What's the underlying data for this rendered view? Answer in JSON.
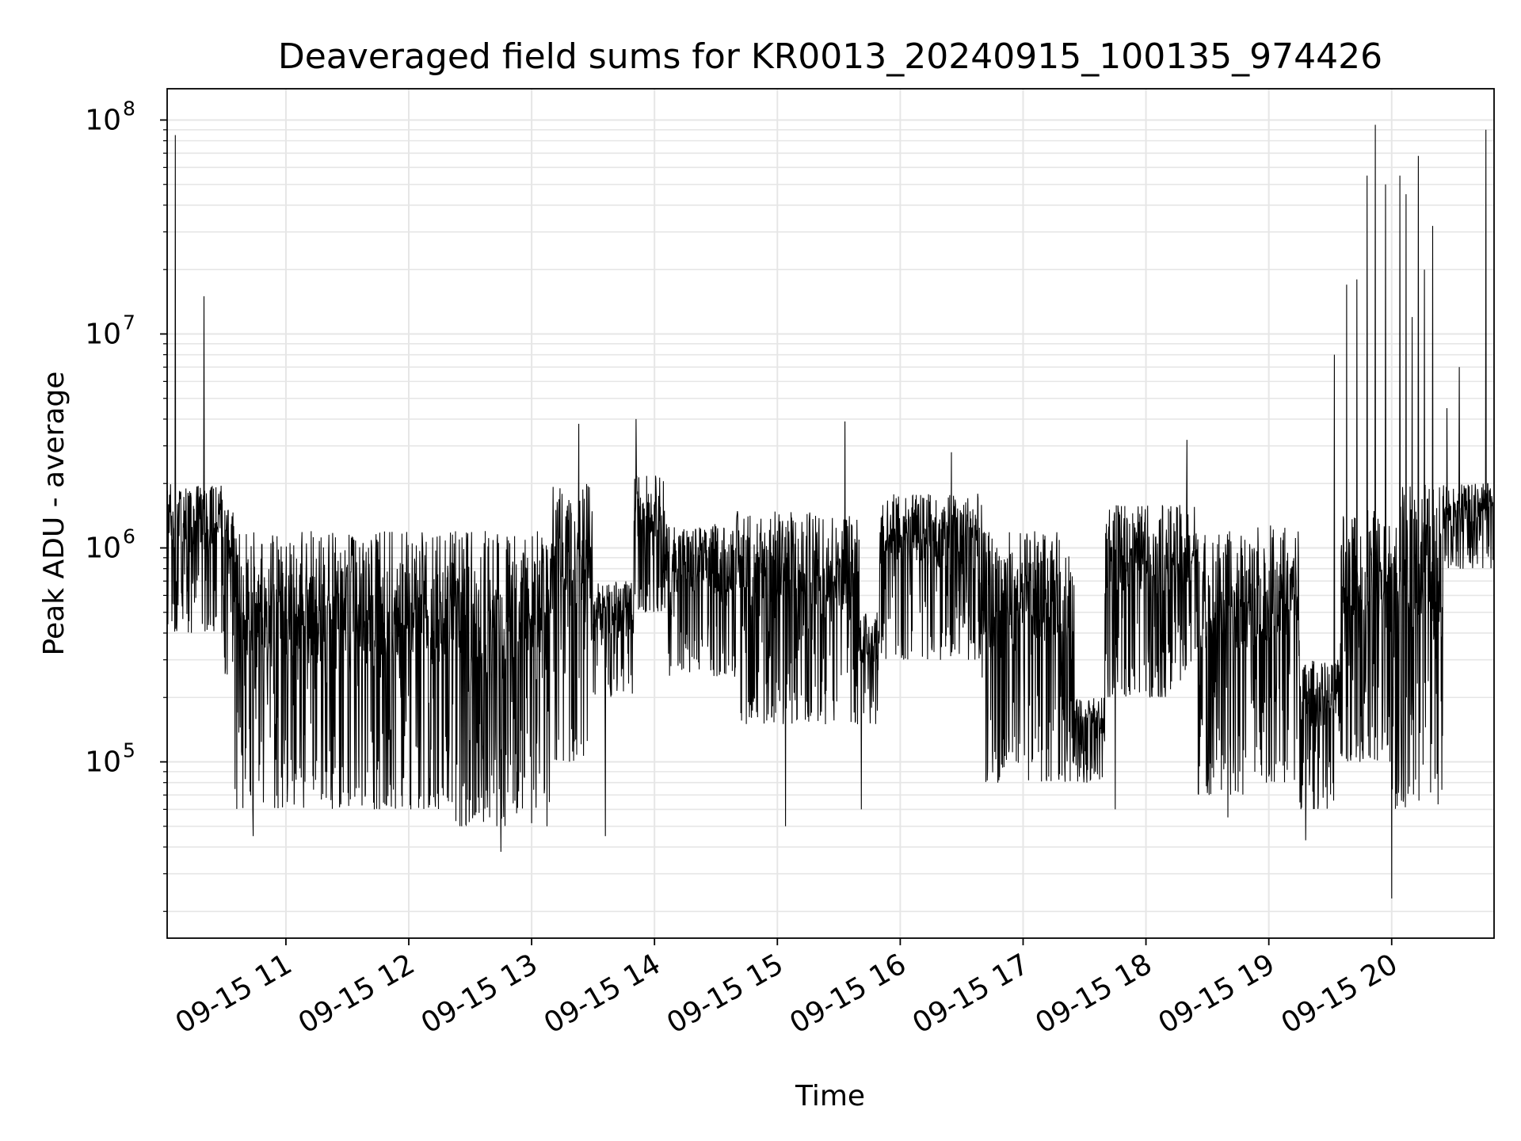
{
  "chart_data": {
    "type": "line",
    "title": "Deaveraged field sums for KR0013_20240915_100135_974426",
    "xlabel": "Time",
    "ylabel": "Peak ADU - average",
    "yscale": "log",
    "grid": true,
    "line_color": "#000000",
    "grid_color": "#e6e6e6",
    "xlim": [
      "2024-09-15 10:02",
      "2024-09-15 20:50"
    ],
    "ylim": [
      15000,
      140000000
    ],
    "x_ticks": [
      {
        "value": "2024-09-15 11:00",
        "label": "09-15 11"
      },
      {
        "value": "2024-09-15 12:00",
        "label": "09-15 12"
      },
      {
        "value": "2024-09-15 13:00",
        "label": "09-15 13"
      },
      {
        "value": "2024-09-15 14:00",
        "label": "09-15 14"
      },
      {
        "value": "2024-09-15 15:00",
        "label": "09-15 15"
      },
      {
        "value": "2024-09-15 16:00",
        "label": "09-15 16"
      },
      {
        "value": "2024-09-15 17:00",
        "label": "09-15 17"
      },
      {
        "value": "2024-09-15 18:00",
        "label": "09-15 18"
      },
      {
        "value": "2024-09-15 19:00",
        "label": "09-15 19"
      },
      {
        "value": "2024-09-15 20:00",
        "label": "09-15 20"
      }
    ],
    "y_ticks": [
      {
        "value": 100000,
        "base": "10",
        "exp": "5"
      },
      {
        "value": 1000000,
        "base": "10",
        "exp": "6"
      },
      {
        "value": 10000000,
        "base": "10",
        "exp": "7"
      },
      {
        "value": 100000000,
        "base": "10",
        "exp": "8"
      }
    ],
    "series": [
      {
        "segments": [
          {
            "start": "2024-09-15 10:02",
            "end": "2024-09-15 10:30",
            "low": 400000,
            "high": 2000000
          },
          {
            "start": "2024-09-15 10:30",
            "end": "2024-09-15 10:35",
            "low": 250000,
            "high": 1500000
          },
          {
            "start": "2024-09-15 10:35",
            "end": "2024-09-15 11:30",
            "low": 60000,
            "high": 1200000
          },
          {
            "start": "2024-09-15 11:30",
            "end": "2024-09-15 12:20",
            "low": 60000,
            "high": 1200000
          },
          {
            "start": "2024-09-15 12:20",
            "end": "2024-09-15 13:10",
            "low": 50000,
            "high": 1200000
          },
          {
            "start": "2024-09-15 13:10",
            "end": "2024-09-15 13:30",
            "low": 100000,
            "high": 2000000
          },
          {
            "start": "2024-09-15 13:30",
            "end": "2024-09-15 13:50",
            "low": 200000,
            "high": 700000
          },
          {
            "start": "2024-09-15 13:50",
            "end": "2024-09-15 14:05",
            "low": 500000,
            "high": 2200000
          },
          {
            "start": "2024-09-15 14:05",
            "end": "2024-09-15 14:40",
            "low": 250000,
            "high": 1300000
          },
          {
            "start": "2024-09-15 14:40",
            "end": "2024-09-15 15:40",
            "low": 150000,
            "high": 1500000
          },
          {
            "start": "2024-09-15 15:40",
            "end": "2024-09-15 15:50",
            "low": 150000,
            "high": 500000
          },
          {
            "start": "2024-09-15 15:50",
            "end": "2024-09-15 16:40",
            "low": 300000,
            "high": 1800000
          },
          {
            "start": "2024-09-15 16:40",
            "end": "2024-09-15 17:25",
            "low": 80000,
            "high": 1200000
          },
          {
            "start": "2024-09-15 17:25",
            "end": "2024-09-15 17:40",
            "low": 80000,
            "high": 200000
          },
          {
            "start": "2024-09-15 17:40",
            "end": "2024-09-15 18:25",
            "low": 200000,
            "high": 1600000
          },
          {
            "start": "2024-09-15 18:25",
            "end": "2024-09-15 18:50",
            "low": 70000,
            "high": 1200000
          },
          {
            "start": "2024-09-15 18:50",
            "end": "2024-09-15 19:15",
            "low": 80000,
            "high": 1300000
          },
          {
            "start": "2024-09-15 19:15",
            "end": "2024-09-15 19:35",
            "low": 60000,
            "high": 300000
          },
          {
            "start": "2024-09-15 19:35",
            "end": "2024-09-15 20:00",
            "low": 100000,
            "high": 1500000
          },
          {
            "start": "2024-09-15 20:00",
            "end": "2024-09-15 20:25",
            "low": 60000,
            "high": 2000000
          },
          {
            "start": "2024-09-15 20:25",
            "end": "2024-09-15 20:50",
            "low": 800000,
            "high": 2000000
          }
        ],
        "spikes": [
          {
            "x": "2024-09-15 10:06",
            "y": 85000000
          },
          {
            "x": "2024-09-15 10:20",
            "y": 15000000
          },
          {
            "x": "2024-09-15 10:44",
            "y": 45000
          },
          {
            "x": "2024-09-15 12:45",
            "y": 38000
          },
          {
            "x": "2024-09-15 13:23",
            "y": 3800000
          },
          {
            "x": "2024-09-15 13:36",
            "y": 45000
          },
          {
            "x": "2024-09-15 13:51",
            "y": 4000000
          },
          {
            "x": "2024-09-15 15:04",
            "y": 50000
          },
          {
            "x": "2024-09-15 15:33",
            "y": 3900000
          },
          {
            "x": "2024-09-15 15:41",
            "y": 60000
          },
          {
            "x": "2024-09-15 16:25",
            "y": 2800000
          },
          {
            "x": "2024-09-15 17:45",
            "y": 60000
          },
          {
            "x": "2024-09-15 18:20",
            "y": 3200000
          },
          {
            "x": "2024-09-15 18:40",
            "y": 55000
          },
          {
            "x": "2024-09-15 19:18",
            "y": 43000
          },
          {
            "x": "2024-09-15 19:32",
            "y": 8000000
          },
          {
            "x": "2024-09-15 19:38",
            "y": 17000000
          },
          {
            "x": "2024-09-15 19:43",
            "y": 18000000
          },
          {
            "x": "2024-09-15 19:48",
            "y": 55000000
          },
          {
            "x": "2024-09-15 19:52",
            "y": 95000000
          },
          {
            "x": "2024-09-15 19:57",
            "y": 50000000
          },
          {
            "x": "2024-09-15 20:00",
            "y": 23000
          },
          {
            "x": "2024-09-15 20:04",
            "y": 55000000
          },
          {
            "x": "2024-09-15 20:07",
            "y": 45000000
          },
          {
            "x": "2024-09-15 20:10",
            "y": 12000000
          },
          {
            "x": "2024-09-15 20:13",
            "y": 68000000
          },
          {
            "x": "2024-09-15 20:16",
            "y": 20000000
          },
          {
            "x": "2024-09-15 20:20",
            "y": 32000000
          },
          {
            "x": "2024-09-15 20:27",
            "y": 4500000
          },
          {
            "x": "2024-09-15 20:33",
            "y": 7000000
          },
          {
            "x": "2024-09-15 20:46",
            "y": 90000000
          }
        ]
      }
    ]
  }
}
